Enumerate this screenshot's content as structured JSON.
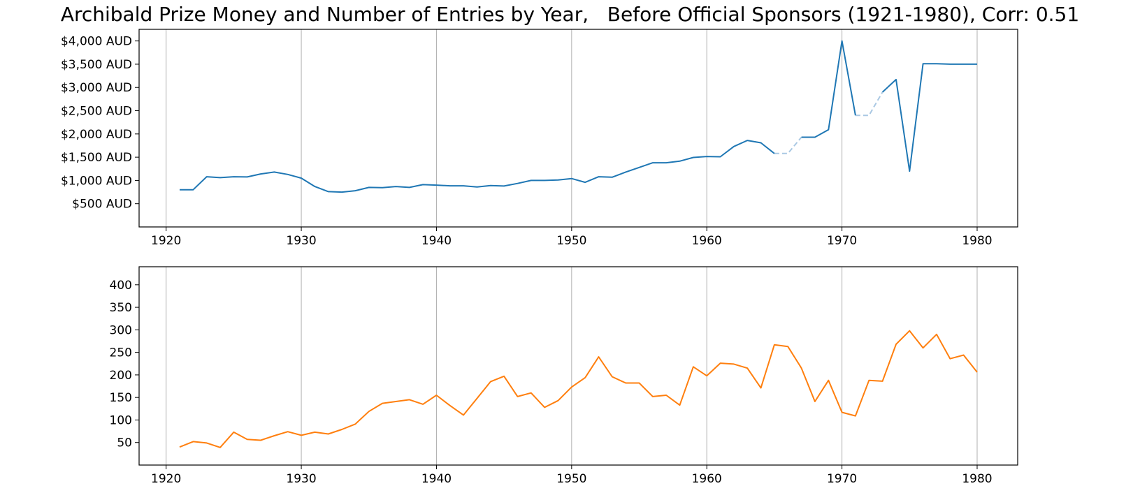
{
  "title": "Archibald Prize Money and Number of Entries by Year,   Before Official Sponsors (1921-1980), Corr: 0.51",
  "colors": {
    "prize": "#1f77b4",
    "prize_missing": "#a9c8e3",
    "entries": "#ff7f0e",
    "grid": "#b0b0b0"
  },
  "chart_data": [
    {
      "type": "line",
      "name": "prize-money",
      "xlim": [
        1918,
        1983
      ],
      "ylim": [
        0,
        4250
      ],
      "grid": "vertical",
      "x_ticks": [
        "1920",
        "1930",
        "1940",
        "1950",
        "1960",
        "1970",
        "1980"
      ],
      "y_ticks": [
        {
          "value": 500,
          "label": "$500 AUD"
        },
        {
          "value": 1000,
          "label": "$1,000 AUD"
        },
        {
          "value": 1500,
          "label": "$1,500 AUD"
        },
        {
          "value": 2000,
          "label": "$2,000 AUD"
        },
        {
          "value": 2500,
          "label": "$2,500 AUD"
        },
        {
          "value": 3000,
          "label": "$3,000 AUD"
        },
        {
          "value": 3500,
          "label": "$3,500 AUD"
        },
        {
          "value": 4000,
          "label": "$4,000 AUD"
        }
      ],
      "x": [
        1921,
        1922,
        1923,
        1924,
        1925,
        1926,
        1927,
        1928,
        1929,
        1930,
        1931,
        1932,
        1933,
        1934,
        1935,
        1936,
        1937,
        1938,
        1939,
        1940,
        1941,
        1942,
        1943,
        1944,
        1945,
        1946,
        1947,
        1948,
        1949,
        1950,
        1951,
        1952,
        1953,
        1954,
        1955,
        1956,
        1957,
        1958,
        1959,
        1960,
        1961,
        1962,
        1963,
        1964,
        1965,
        1966,
        1967,
        1968,
        1969,
        1970,
        1971,
        1972,
        1973,
        1974,
        1975,
        1976,
        1977,
        1978,
        1979,
        1980
      ],
      "values": [
        800,
        800,
        1080,
        1060,
        1080,
        1075,
        1140,
        1180,
        1130,
        1050,
        870,
        760,
        750,
        780,
        850,
        845,
        870,
        850,
        910,
        900,
        885,
        885,
        860,
        890,
        880,
        935,
        1000,
        1000,
        1010,
        1040,
        960,
        1080,
        1070,
        1180,
        1280,
        1380,
        1380,
        1415,
        1495,
        1515,
        1510,
        1730,
        1860,
        1810,
        1580,
        null,
        1930,
        1930,
        2090,
        4000,
        2400,
        null,
        2900,
        3170,
        1200,
        3510,
        3510,
        3500,
        3500,
        3500
      ],
      "missing_segments": [
        {
          "x": [
            1965,
            1966,
            1967
          ],
          "values": [
            1580,
            1580,
            1930
          ]
        },
        {
          "x": [
            1971,
            1972,
            1973
          ],
          "values": [
            2400,
            2400,
            2900
          ]
        }
      ]
    },
    {
      "type": "line",
      "name": "entries",
      "xlim": [
        1918,
        1983
      ],
      "ylim": [
        0,
        440
      ],
      "grid": "vertical",
      "x_ticks": [
        "1920",
        "1930",
        "1940",
        "1950",
        "1960",
        "1970",
        "1980"
      ],
      "y_ticks": [
        {
          "value": 50,
          "label": "50"
        },
        {
          "value": 100,
          "label": "100"
        },
        {
          "value": 150,
          "label": "150"
        },
        {
          "value": 200,
          "label": "200"
        },
        {
          "value": 250,
          "label": "250"
        },
        {
          "value": 300,
          "label": "300"
        },
        {
          "value": 350,
          "label": "350"
        },
        {
          "value": 400,
          "label": "400"
        }
      ],
      "x": [
        1921,
        1922,
        1923,
        1924,
        1925,
        1926,
        1927,
        1928,
        1929,
        1930,
        1931,
        1932,
        1933,
        1934,
        1935,
        1936,
        1937,
        1938,
        1939,
        1940,
        1941,
        1942,
        1943,
        1944,
        1945,
        1946,
        1947,
        1948,
        1949,
        1950,
        1951,
        1952,
        1953,
        1954,
        1955,
        1956,
        1957,
        1958,
        1959,
        1960,
        1961,
        1962,
        1963,
        1964,
        1965,
        1966,
        1967,
        1968,
        1969,
        1970,
        1971,
        1972,
        1973,
        1974,
        1975,
        1976,
        1977,
        1978,
        1979,
        1980
      ],
      "values": [
        40,
        52,
        49,
        39,
        73,
        57,
        55,
        65,
        74,
        66,
        73,
        69,
        79,
        91,
        119,
        137,
        141,
        145,
        135,
        155,
        132,
        111,
        148,
        185,
        197,
        152,
        160,
        128,
        143,
        173,
        194,
        240,
        196,
        182,
        182,
        152,
        155,
        133,
        218,
        198,
        226,
        224,
        215,
        171,
        267,
        263,
        215,
        141,
        188,
        117,
        109,
        188,
        186,
        268,
        298,
        260,
        290,
        236,
        244,
        206
      ]
    }
  ]
}
